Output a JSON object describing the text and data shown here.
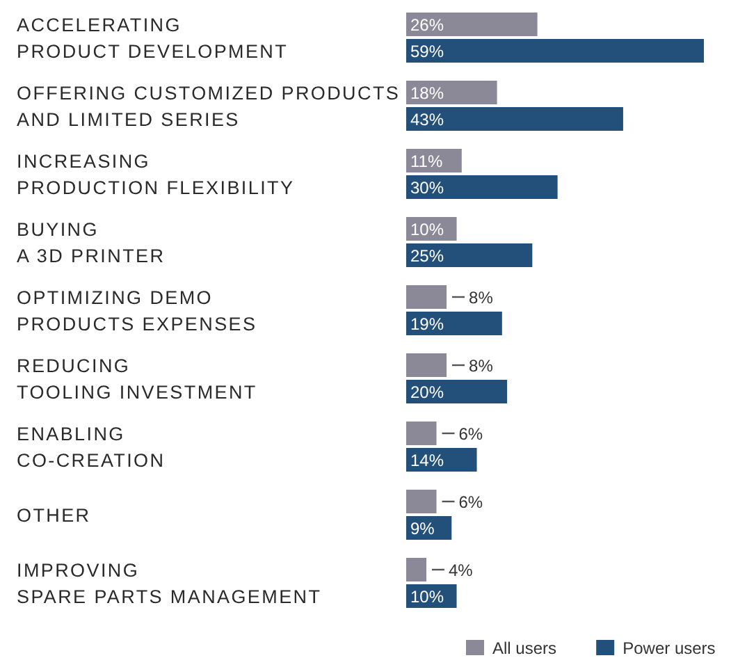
{
  "chart_data": {
    "type": "bar",
    "orientation": "horizontal",
    "categories": [
      "ACCELERATING\nPRODUCT DEVELOPMENT",
      "OFFERING CUSTOMIZED PRODUCTS\nAND LIMITED SERIES",
      "INCREASING\nPRODUCTION FLEXIBILITY",
      "BUYING\nA 3D PRINTER",
      "OPTIMIZING DEMO\nPRODUCTS EXPENSES",
      "REDUCING\nTOOLING INVESTMENT",
      "ENABLING\nCO-CREATION",
      "OTHER",
      "IMPROVING\nSPARE PARTS MANAGEMENT"
    ],
    "series": [
      {
        "name": "All users",
        "color": "#8b8898",
        "values": [
          26,
          18,
          11,
          10,
          8,
          8,
          6,
          6,
          4
        ],
        "value_labels": [
          "26%",
          "18%",
          "11%",
          "10%",
          "8%",
          "8%",
          "6%",
          "6%",
          "4%"
        ]
      },
      {
        "name": "Power users",
        "color": "#23507b",
        "values": [
          59,
          43,
          30,
          25,
          19,
          20,
          14,
          9,
          10
        ],
        "value_labels": [
          "59%",
          "43%",
          "30%",
          "25%",
          "19%",
          "20%",
          "14%",
          "9%",
          "10%"
        ]
      }
    ],
    "legend": "bottom right"
  }
}
